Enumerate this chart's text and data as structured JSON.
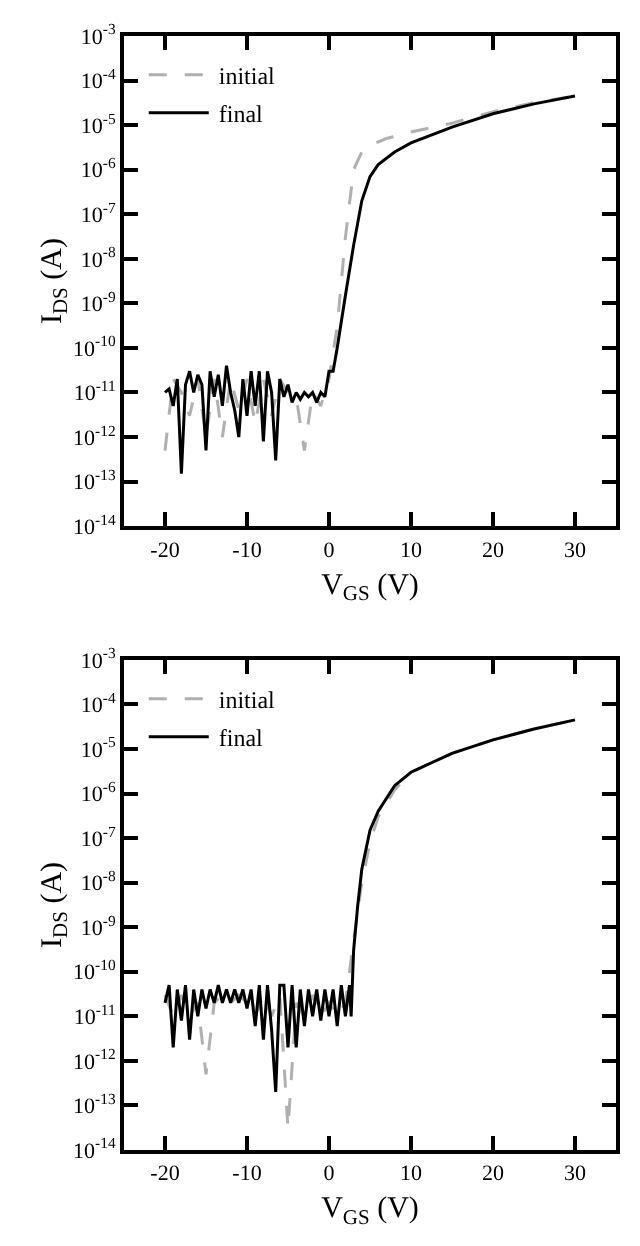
{
  "chart_data": [
    {
      "type": "line",
      "xlabel": "V$_{GS}$ (V)",
      "ylabel": "I$_{DS}$ (A)",
      "log": "y",
      "legend": "top left",
      "marker": "none",
      "xlim": [
        -25,
        35
      ],
      "xticks": [
        -20,
        -10,
        0,
        10,
        20,
        30
      ],
      "ylim": [
        1e-14,
        0.001
      ],
      "yticks": [
        {
          "value": 1e-14,
          "label": "10$^{-14}$"
        },
        {
          "value": 1e-13,
          "label": "10$^{-13}$"
        },
        {
          "value": 1e-12,
          "label": "10$^{-12}$"
        },
        {
          "value": 1e-11,
          "label": "10$^{-11}$"
        },
        {
          "value": 1e-10,
          "label": "10$^{-10}$"
        },
        {
          "value": 1e-09,
          "label": "10$^{-9}$"
        },
        {
          "value": 1e-08,
          "label": "10$^{-8}$"
        },
        {
          "value": 1e-07,
          "label": "10$^{-7}$"
        },
        {
          "value": 1e-06,
          "label": "10$^{-6}$"
        },
        {
          "value": 1e-05,
          "label": "10$^{-5}$"
        },
        {
          "value": 0.0001,
          "label": "10$^{-4}$"
        },
        {
          "value": 0.001,
          "label": "10$^{-3}$"
        }
      ],
      "series": [
        {
          "name": "initial",
          "color": "#b0b0b0",
          "line_style": "dashed",
          "x": [
            -20,
            -19,
            -18,
            -17,
            -16,
            -15,
            -14,
            -13,
            -12,
            -11,
            -10,
            -9,
            -8,
            -7,
            -6,
            -5,
            -4,
            -3,
            -2,
            -1,
            0,
            1,
            2,
            3,
            4,
            5,
            7,
            10,
            15,
            20,
            25,
            30
          ],
          "values": [
            5e-13,
            2e-11,
            1e-11,
            3e-12,
            2e-11,
            1e-12,
            2e-11,
            1e-12,
            2e-11,
            4e-12,
            2e-11,
            2e-12,
            2e-11,
            3e-12,
            2e-11,
            1e-11,
            8e-12,
            5e-13,
            1e-11,
            5e-12,
            2e-11,
            3e-10,
            3e-08,
            1e-06,
            2.5e-06,
            3.5e-06,
            5e-06,
            7e-06,
            1.1e-05,
            2e-05,
            3.2e-05,
            4.5e-05
          ]
        },
        {
          "name": "final",
          "color": "#000000",
          "line_style": "solid",
          "x": [
            -20,
            -19.5,
            -19,
            -18.5,
            -18,
            -17.5,
            -17,
            -16.5,
            -16,
            -15.5,
            -15,
            -14.5,
            -14,
            -13.5,
            -13,
            -12.5,
            -12,
            -11.5,
            -11,
            -10.5,
            -10,
            -9.5,
            -9,
            -8.5,
            -8,
            -7.5,
            -7,
            -6.5,
            -6,
            -5.5,
            -5,
            -4.5,
            -4,
            -3.5,
            -3,
            -2.5,
            -2,
            -1.5,
            -1,
            -0.5,
            0,
            0.5,
            1,
            2,
            3,
            4,
            5,
            6,
            8,
            10,
            15,
            20,
            25,
            30
          ],
          "values": [
            1e-11,
            1.2e-11,
            5e-12,
            2e-11,
            1.5e-13,
            1.5e-11,
            3e-11,
            1e-11,
            2.5e-11,
            1.5e-11,
            5e-13,
            3e-11,
            8e-12,
            2.5e-11,
            5e-12,
            4e-11,
            1e-11,
            4e-12,
            1e-12,
            2e-11,
            3e-12,
            3e-11,
            5e-12,
            3e-11,
            8e-13,
            3e-11,
            1e-11,
            3e-13,
            2e-11,
            8e-12,
            1.5e-11,
            6e-12,
            1e-11,
            7e-12,
            1e-11,
            8e-12,
            1e-11,
            6e-12,
            1e-11,
            8e-12,
            3e-11,
            3e-11,
            1e-10,
            1.5e-09,
            2e-08,
            2e-07,
            7e-07,
            1.3e-06,
            2.5e-06,
            4e-06,
            9e-06,
            1.8e-05,
            3e-05,
            4.5e-05
          ]
        }
      ]
    },
    {
      "type": "line",
      "xlabel": "V$_{GS}$ (V)",
      "ylabel": "I$_{DS}$ (A)",
      "log": "y",
      "legend": "top left",
      "marker": "none",
      "xlim": [
        -25,
        35
      ],
      "xticks": [
        -20,
        -10,
        0,
        10,
        20,
        30
      ],
      "ylim": [
        1e-14,
        0.001
      ],
      "yticks": [
        {
          "value": 1e-14,
          "label": "10$^{-14}$"
        },
        {
          "value": 1e-13,
          "label": "10$^{-13}$"
        },
        {
          "value": 1e-12,
          "label": "10$^{-12}$"
        },
        {
          "value": 1e-11,
          "label": "10$^{-11}$"
        },
        {
          "value": 1e-10,
          "label": "10$^{-10}$"
        },
        {
          "value": 1e-09,
          "label": "10$^{-9}$"
        },
        {
          "value": 1e-08,
          "label": "10$^{-8}$"
        },
        {
          "value": 1e-07,
          "label": "10$^{-7}$"
        },
        {
          "value": 1e-06,
          "label": "10$^{-6}$"
        },
        {
          "value": 1e-05,
          "label": "10$^{-5}$"
        },
        {
          "value": 0.0001,
          "label": "10$^{-4}$"
        },
        {
          "value": 0.001,
          "label": "10$^{-3}$"
        }
      ],
      "series": [
        {
          "name": "initial",
          "color": "#b0b0b0",
          "line_style": "dashed",
          "x": [
            -20,
            -19,
            -18,
            -17,
            -16,
            -15,
            -14,
            -13,
            -12,
            -11,
            -10,
            -9,
            -8,
            -7,
            -6,
            -5,
            -4,
            -3,
            -2,
            -1,
            0,
            1,
            2,
            3,
            4,
            5,
            6,
            8,
            10,
            15,
            20,
            25,
            30
          ],
          "values": [
            3e-11,
            1e-11,
            3e-11,
            1e-11,
            2e-11,
            5e-13,
            2e-11,
            3e-11,
            2e-11,
            3e-11,
            2e-11,
            1e-11,
            3e-11,
            1e-11,
            3e-11,
            3e-14,
            2e-11,
            1e-11,
            3e-11,
            1e-11,
            2e-11,
            1e-11,
            2e-11,
            5e-10,
            1e-08,
            8e-08,
            3e-07,
            1.2e-06,
            3e-06,
            8e-06,
            1.6e-05,
            2.8e-05,
            4.5e-05
          ]
        },
        {
          "name": "final",
          "color": "#000000",
          "line_style": "solid",
          "x": [
            -20,
            -19.5,
            -19,
            -18.5,
            -18,
            -17.5,
            -17,
            -16.5,
            -16,
            -15.5,
            -15,
            -14.5,
            -14,
            -13.5,
            -13,
            -12.5,
            -12,
            -11.5,
            -11,
            -10.5,
            -10,
            -9.5,
            -9,
            -8.5,
            -8,
            -7.5,
            -7,
            -6.5,
            -6,
            -5.5,
            -5,
            -4.5,
            -4,
            -3.5,
            -3,
            -2.5,
            -2,
            -1.5,
            -1,
            -0.5,
            0,
            0.5,
            1,
            1.5,
            2,
            2.5,
            2.7,
            3,
            3.5,
            4,
            5,
            6,
            8,
            10,
            15,
            20,
            25,
            30
          ],
          "values": [
            2e-11,
            5e-11,
            2e-12,
            4e-11,
            8e-12,
            5e-11,
            3e-12,
            4e-11,
            1e-11,
            4e-11,
            1.5e-11,
            4e-11,
            2e-11,
            5e-11,
            2e-11,
            4e-11,
            2e-11,
            4e-11,
            2e-11,
            4e-11,
            1.5e-11,
            4e-11,
            6e-12,
            5e-11,
            3e-12,
            5e-11,
            5e-12,
            2e-13,
            5e-11,
            5e-11,
            2e-12,
            5e-11,
            2e-12,
            4e-11,
            6e-12,
            4e-11,
            1e-11,
            4e-11,
            8e-12,
            4e-11,
            1e-11,
            4e-11,
            6e-12,
            5e-11,
            1e-11,
            5e-11,
            1e-11,
            3e-10,
            3e-09,
            2e-08,
            1.5e-07,
            4e-07,
            1.5e-06,
            3e-06,
            8e-06,
            1.6e-05,
            2.8e-05,
            4.5e-05
          ]
        }
      ]
    }
  ]
}
